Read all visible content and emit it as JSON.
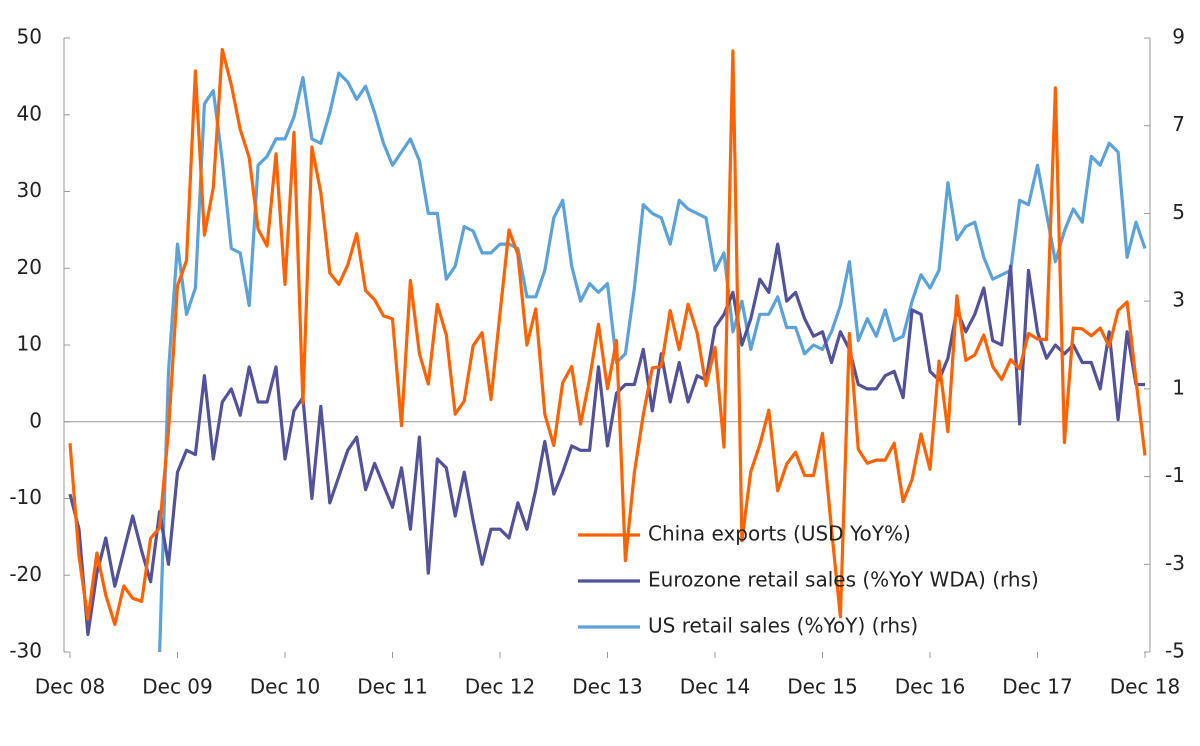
{
  "chart_data": {
    "type": "line",
    "categories": [
      "Dec 08",
      null,
      null,
      null,
      null,
      null,
      null,
      null,
      null,
      null,
      null,
      null,
      "Dec 09",
      null,
      null,
      null,
      null,
      null,
      null,
      null,
      null,
      null,
      null,
      null,
      "Dec 10",
      null,
      null,
      null,
      null,
      null,
      null,
      null,
      null,
      null,
      null,
      null,
      "Dec 11",
      null,
      null,
      null,
      null,
      null,
      null,
      null,
      null,
      null,
      null,
      null,
      "Dec 12",
      null,
      null,
      null,
      null,
      null,
      null,
      null,
      null,
      null,
      null,
      null,
      "Dec 13",
      null,
      null,
      null,
      null,
      null,
      null,
      null,
      null,
      null,
      null,
      null,
      "Dec 14",
      null,
      null,
      null,
      null,
      null,
      null,
      null,
      null,
      null,
      null,
      null,
      "Dec 15",
      null,
      null,
      null,
      null,
      null,
      null,
      null,
      null,
      null,
      null,
      null,
      "Dec 16",
      null,
      null,
      null,
      null,
      null,
      null,
      null,
      null,
      null,
      null,
      null,
      "Dec 17",
      null,
      null,
      null,
      null,
      null,
      null,
      null,
      null,
      null,
      null,
      null,
      "Dec 18"
    ],
    "series": [
      {
        "name": "China exports (USD YoY%)",
        "color": "#ff6200",
        "values": [
          -2.8,
          -17.5,
          -25.7,
          -17.1,
          -22.6,
          -26.4,
          -21.4,
          -23,
          -23.4,
          -15.2,
          -13.8,
          -1.2,
          17.7,
          21,
          45.7,
          24.3,
          30.5,
          48.5,
          43.9,
          38.1,
          34.4,
          25.1,
          22.9,
          34.9,
          17.9,
          37.7,
          2.4,
          35.8,
          29.9,
          19.4,
          17.9,
          20.4,
          24.5,
          17.1,
          15.9,
          13.8,
          13.4,
          -0.5,
          18.4,
          8.9,
          4.9,
          15.3,
          11.3,
          1,
          2.7,
          9.9,
          11.6,
          2.9,
          14.1,
          25,
          21.8,
          10,
          14.7,
          1,
          -3.1,
          5.1,
          7.2,
          -0.3,
          5.6,
          12.7,
          4.3,
          10.6,
          -18.1,
          -6.6,
          0.9,
          7,
          7.2,
          14.5,
          9.4,
          15.3,
          11.6,
          4.7,
          9.7,
          -3.3,
          48.3,
          -15.5,
          -6.5,
          -3,
          1.5,
          -9,
          -5.5,
          -4,
          -7,
          -7,
          -1.5,
          -14,
          -25.4,
          11.5,
          -3.6,
          -5.4,
          -5,
          -5,
          -2.8,
          -10.4,
          -7.5,
          -1.6,
          -6.2,
          7.9,
          -1.3,
          16.4,
          8,
          8.7,
          11.3,
          7.2,
          5.5,
          8.1,
          6.9,
          11.5,
          10.8,
          10.7,
          43.5,
          -2.7,
          12.2,
          12.1,
          11.2,
          12.2,
          9.8,
          14.5,
          15.6,
          5.4,
          -4.4
        ]
      },
      {
        "name": "Eurozone retail sales (%YoY WDA) (rhs)",
        "color": "#525199",
        "axis": "y2",
        "values": [
          -1.4,
          -2.2,
          -4.6,
          -3.2,
          -2.4,
          -3.5,
          -2.7,
          -1.9,
          -2.7,
          -3.4,
          -1.8,
          -3.0,
          -0.9,
          -0.4,
          -0.5,
          1.3,
          -0.6,
          0.7,
          1.0,
          0.4,
          1.5,
          0.7,
          0.7,
          1.5,
          -0.6,
          0.5,
          0.8,
          -1.5,
          0.6,
          -1.6,
          -1.0,
          -0.4,
          -0.1,
          -1.3,
          -0.7,
          -1.2,
          -1.7,
          -0.8,
          -2.2,
          -0.1,
          -3.2,
          -0.6,
          -0.8,
          -1.9,
          -0.9,
          -2.0,
          -3.0,
          -2.2,
          -2.2,
          -2.4,
          -1.6,
          -2.2,
          -1.3,
          -0.2,
          -1.4,
          -0.9,
          -0.3,
          -0.4,
          -0.4,
          1.5,
          -0.3,
          0.9,
          1.1,
          1.1,
          1.9,
          0.5,
          1.8,
          0.7,
          1.6,
          0.7,
          1.3,
          1.2,
          2.4,
          2.7,
          3.2,
          2.0,
          2.6,
          3.5,
          3.2,
          4.3,
          3.0,
          3.2,
          2.6,
          2.2,
          2.3,
          1.6,
          2.3,
          1.9,
          1.1,
          1.0,
          1.0,
          1.3,
          1.4,
          0.8,
          2.8,
          2.7,
          1.4,
          1.2,
          1.7,
          2.8,
          2.3,
          2.7,
          3.3,
          2.1,
          2.0,
          3.8,
          0.2,
          3.7,
          2.3,
          1.7,
          2.0,
          1.8,
          2.0,
          1.6,
          1.6,
          1.0,
          2.3,
          0.3,
          2.3,
          1.1,
          1.1
        ]
      },
      {
        "name": "US retail sales (%YoY) (rhs)",
        "color": "#5aa2d8",
        "axis": "y2",
        "values": [
          null,
          null,
          null,
          null,
          null,
          null,
          null,
          null,
          null,
          null,
          -5,
          1.4,
          4.3,
          2.7,
          3.3,
          7.5,
          7.8,
          6.2,
          4.2,
          4.1,
          2.9,
          6.1,
          6.3,
          6.7,
          6.7,
          7.2,
          8.1,
          6.7,
          6.6,
          7.3,
          8.2,
          8.0,
          7.6,
          7.9,
          7.3,
          6.6,
          6.1,
          6.4,
          6.7,
          6.2,
          5.0,
          5.0,
          3.5,
          3.8,
          4.7,
          4.6,
          4.1,
          4.1,
          4.3,
          4.3,
          4.2,
          3.1,
          3.1,
          3.7,
          4.9,
          5.3,
          3.8,
          3.0,
          3.4,
          3.2,
          3.4,
          1.6,
          1.8,
          3.3,
          5.2,
          5.0,
          4.9,
          4.3,
          5.3,
          5.1,
          5.0,
          4.9,
          3.7,
          4.1,
          2.3,
          3.0,
          1.9,
          2.7,
          2.7,
          3.1,
          2.4,
          2.4,
          1.8,
          2.0,
          1.9,
          2.3,
          2.9,
          3.9,
          2.1,
          2.6,
          2.2,
          2.8,
          2.1,
          2.2,
          3.0,
          3.6,
          3.3,
          3.7,
          5.7,
          4.4,
          4.7,
          4.8,
          4.0,
          3.5,
          3.6,
          3.7,
          5.3,
          5.2,
          6.1,
          5.0,
          3.9,
          4.6,
          5.1,
          4.8,
          6.3,
          6.1,
          6.6,
          6.4,
          4.0,
          4.8,
          4.2
        ]
      }
    ],
    "ylim": [
      -30,
      50
    ],
    "yticks": [
      -30,
      -20,
      -10,
      0,
      10,
      20,
      30,
      40,
      50
    ],
    "y2lim": [
      -5,
      9
    ],
    "y2ticks": [
      -5,
      -3,
      -1,
      1,
      3,
      5,
      7,
      9
    ],
    "legend": "bottom"
  }
}
